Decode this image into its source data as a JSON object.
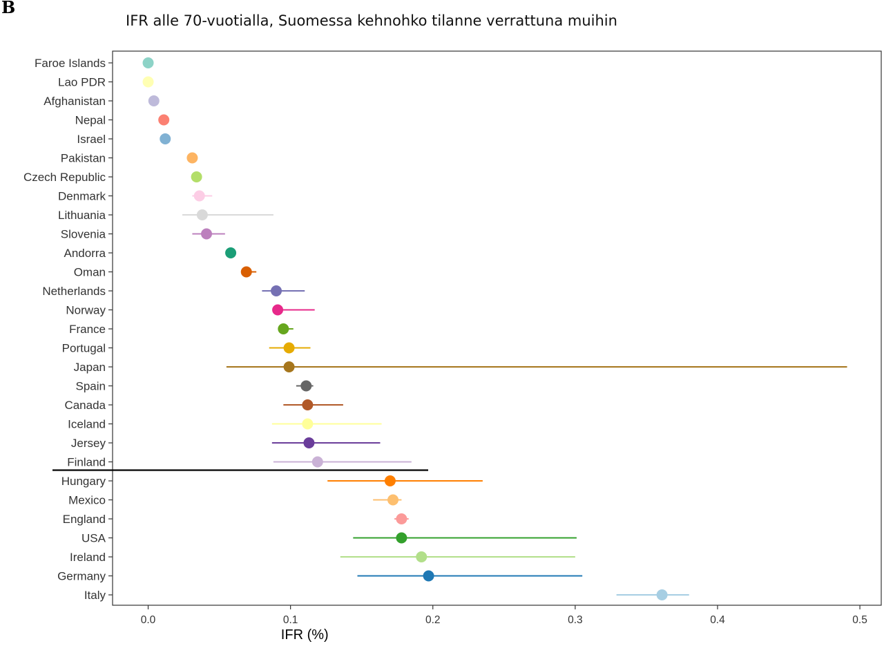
{
  "panel_label": "B",
  "chart_data": {
    "type": "scatter",
    "title": "IFR alle 70-vuotialla, Suomessa kehnohko tilanne verrattuna muihin",
    "xlabel": "IFR (%)",
    "ylabel": "",
    "xlim": [
      -0.025,
      0.515
    ],
    "xticks": [
      "0.0",
      "0.1",
      "0.2",
      "0.3",
      "0.4",
      "0.5"
    ],
    "grid": false,
    "legend": "none",
    "highlight_line_below": "Finland",
    "points": [
      {
        "label": "Faroe Islands",
        "ifr": 0.0,
        "lo": null,
        "hi": null,
        "color": "#8dd3c7"
      },
      {
        "label": "Lao PDR",
        "ifr": 0.0,
        "lo": null,
        "hi": null,
        "color": "#ffffb3"
      },
      {
        "label": "Afghanistan",
        "ifr": 0.004,
        "lo": null,
        "hi": null,
        "color": "#bebada"
      },
      {
        "label": "Nepal",
        "ifr": 0.011,
        "lo": null,
        "hi": null,
        "color": "#fb8072"
      },
      {
        "label": "Israel",
        "ifr": 0.012,
        "lo": null,
        "hi": null,
        "color": "#80b1d3"
      },
      {
        "label": "Pakistan",
        "ifr": 0.031,
        "lo": null,
        "hi": null,
        "color": "#fdb462"
      },
      {
        "label": "Czech Republic",
        "ifr": 0.034,
        "lo": null,
        "hi": null,
        "color": "#b3de69"
      },
      {
        "label": "Denmark",
        "ifr": 0.036,
        "lo": 0.031,
        "hi": 0.045,
        "color": "#fccde5"
      },
      {
        "label": "Lithuania",
        "ifr": 0.038,
        "lo": 0.024,
        "hi": 0.088,
        "color": "#d9d9d9"
      },
      {
        "label": "Slovenia",
        "ifr": 0.041,
        "lo": 0.031,
        "hi": 0.054,
        "color": "#bc80bd"
      },
      {
        "label": "Andorra",
        "ifr": 0.058,
        "lo": null,
        "hi": null,
        "color": "#1b9e77"
      },
      {
        "label": "Oman",
        "ifr": 0.069,
        "lo": 0.066,
        "hi": 0.076,
        "color": "#d95f02"
      },
      {
        "label": "Netherlands",
        "ifr": 0.09,
        "lo": 0.08,
        "hi": 0.11,
        "color": "#7570b3"
      },
      {
        "label": "Norway",
        "ifr": 0.091,
        "lo": 0.089,
        "hi": 0.117,
        "color": "#e7298a"
      },
      {
        "label": "France",
        "ifr": 0.095,
        "lo": 0.093,
        "hi": 0.102,
        "color": "#66a61e"
      },
      {
        "label": "Portugal",
        "ifr": 0.099,
        "lo": 0.085,
        "hi": 0.114,
        "color": "#e6ab02"
      },
      {
        "label": "Japan",
        "ifr": 0.099,
        "lo": 0.055,
        "hi": 0.491,
        "color": "#a6761d"
      },
      {
        "label": "Spain",
        "ifr": 0.111,
        "lo": 0.104,
        "hi": 0.116,
        "color": "#666666"
      },
      {
        "label": "Canada",
        "ifr": 0.112,
        "lo": 0.095,
        "hi": 0.137,
        "color": "#b15928"
      },
      {
        "label": "Iceland",
        "ifr": 0.112,
        "lo": 0.087,
        "hi": 0.164,
        "color": "#ffff99"
      },
      {
        "label": "Jersey",
        "ifr": 0.113,
        "lo": 0.087,
        "hi": 0.163,
        "color": "#6a3d9a"
      },
      {
        "label": "Finland",
        "ifr": 0.119,
        "lo": 0.088,
        "hi": 0.185,
        "color": "#cab2d6"
      },
      {
        "label": "Hungary",
        "ifr": 0.17,
        "lo": 0.126,
        "hi": 0.235,
        "color": "#ff7f00"
      },
      {
        "label": "Mexico",
        "ifr": 0.172,
        "lo": 0.158,
        "hi": 0.178,
        "color": "#fdbf6f"
      },
      {
        "label": "England",
        "ifr": 0.178,
        "lo": 0.173,
        "hi": 0.183,
        "color": "#fb9a99"
      },
      {
        "label": "USA",
        "ifr": 0.178,
        "lo": 0.144,
        "hi": 0.301,
        "color": "#33a02c"
      },
      {
        "label": "Ireland",
        "ifr": 0.192,
        "lo": 0.135,
        "hi": 0.3,
        "color": "#b2df8a"
      },
      {
        "label": "Germany",
        "ifr": 0.197,
        "lo": 0.147,
        "hi": 0.305,
        "color": "#1f78b4"
      },
      {
        "label": "Italy",
        "ifr": 0.361,
        "lo": 0.329,
        "hi": 0.38,
        "color": "#a6cee3"
      }
    ]
  }
}
